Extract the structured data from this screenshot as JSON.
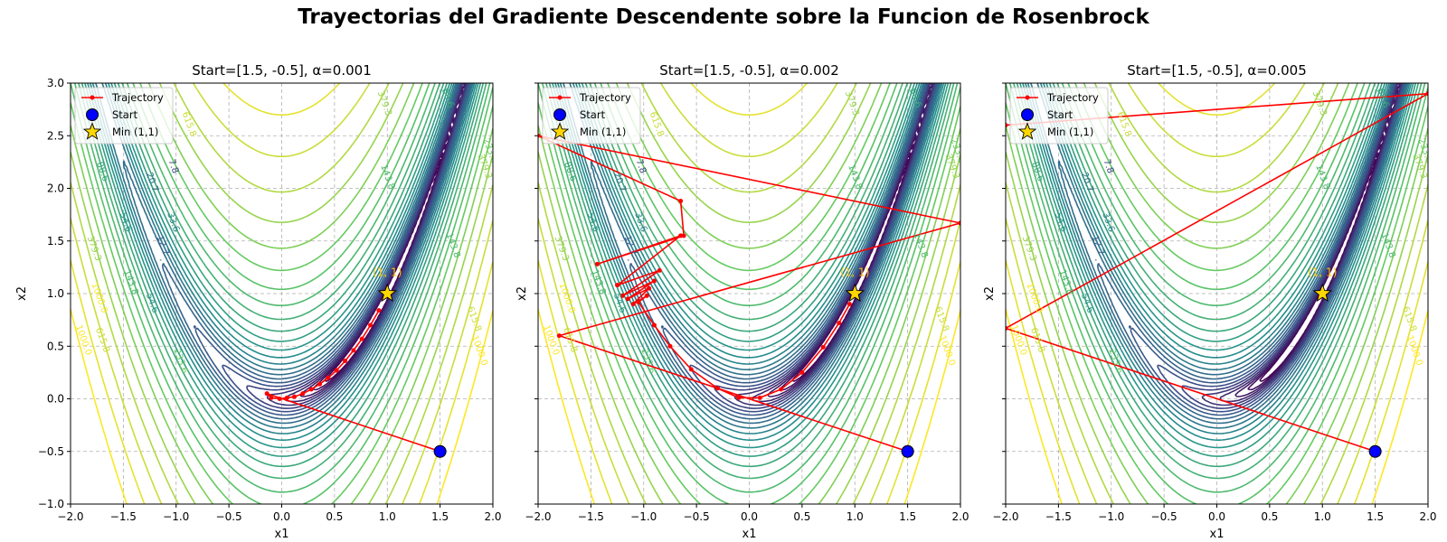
{
  "suptitle": "Trayectorias del Gradiente Descendente sobre la Funcion de Rosenbrock",
  "chart_data": [
    {
      "type": "line",
      "title": "Start=[1.5, -0.5], α=0.001",
      "xlabel": "x1",
      "ylabel": "x2",
      "xlim": [
        -2.0,
        2.0
      ],
      "ylim": [
        -1.0,
        3.0
      ],
      "xticks": [
        "−2.0",
        "−1.5",
        "−1.0",
        "−0.5",
        "0.0",
        "0.5",
        "1.0",
        "1.5",
        "2.0"
      ],
      "yticks": [
        "−1.0",
        "−0.5",
        "0.0",
        "0.5",
        "1.0",
        "1.5",
        "2.0",
        "2.5",
        "3.0"
      ],
      "grid": true,
      "legend_position": "upper-left",
      "series": [
        {
          "name": "Trajectory",
          "color": "#ff0000",
          "x": [
            1.5,
            -0.14,
            -0.1,
            -0.02,
            0.05,
            0.12,
            0.2,
            0.28,
            0.36,
            0.44,
            0.52,
            0.6,
            0.68,
            0.76,
            0.84,
            0.92
          ],
          "y": [
            -0.5,
            0.05,
            0.01,
            0.0,
            0.01,
            0.02,
            0.05,
            0.09,
            0.14,
            0.2,
            0.27,
            0.36,
            0.46,
            0.57,
            0.7,
            0.84
          ]
        },
        {
          "name": "Start",
          "color": "#0000ff",
          "x": [
            1.5
          ],
          "y": [
            -0.5
          ]
        },
        {
          "name": "Min (1,1)",
          "color": "#ffd700",
          "x": [
            1.0
          ],
          "y": [
            1.0
          ]
        }
      ],
      "contour_levels": [
        1000.0,
        615.8,
        379.3,
        233.6,
        143.8,
        88.6,
        54.6,
        33.6,
        20.7,
        12.7,
        7.8
      ],
      "annotations": [
        {
          "text": "(1, 1)",
          "x": 1.0,
          "y": 1.2,
          "color": "#ffc200"
        }
      ]
    },
    {
      "type": "line",
      "title": "Start=[1.5, -0.5], α=0.002",
      "xlabel": "x1",
      "ylabel": "x2",
      "xlim": [
        -2.0,
        2.0
      ],
      "ylim": [
        -1.0,
        3.0
      ],
      "xticks": [
        "−2.0",
        "−1.5",
        "−1.0",
        "−0.5",
        "0.0",
        "0.5",
        "1.0",
        "1.5",
        "2.0"
      ],
      "yticks": [
        "−1.0",
        "−0.5",
        "0.0",
        "0.5",
        "1.0",
        "1.5",
        "2.0",
        "2.5",
        "3.0"
      ],
      "grid": true,
      "legend_position": "upper-left",
      "series": [
        {
          "name": "Trajectory",
          "color": "#ff0000",
          "x": [
            1.5,
            -1.8,
            2.0,
            -2.0,
            -0.65,
            -0.62,
            -1.44,
            -0.65,
            -1.25,
            -0.85,
            -1.2,
            -0.9,
            -1.15,
            -0.95,
            -1.1,
            -0.97,
            -1.05,
            -0.9,
            -0.75,
            -0.55,
            -0.3,
            -0.1,
            0.1,
            0.3,
            0.5,
            0.7,
            0.85,
            0.95
          ],
          "y": [
            -0.5,
            0.6,
            1.67,
            2.5,
            1.88,
            1.55,
            1.28,
            1.55,
            1.08,
            1.22,
            0.98,
            1.12,
            0.95,
            1.05,
            0.9,
            0.98,
            0.92,
            0.7,
            0.5,
            0.28,
            0.1,
            0.01,
            0.01,
            0.09,
            0.25,
            0.49,
            0.72,
            0.9
          ]
        },
        {
          "name": "Start",
          "color": "#0000ff",
          "x": [
            1.5
          ],
          "y": [
            -0.5
          ]
        },
        {
          "name": "Min (1,1)",
          "color": "#ffd700",
          "x": [
            1.0
          ],
          "y": [
            1.0
          ]
        }
      ],
      "contour_levels": [
        1000.0,
        615.8,
        379.3,
        233.6,
        143.8,
        88.6,
        54.6,
        33.6,
        20.7,
        12.7,
        7.8
      ],
      "annotations": [
        {
          "text": "(1, 1)",
          "x": 1.0,
          "y": 1.2,
          "color": "#ffc200"
        }
      ]
    },
    {
      "type": "line",
      "title": "Start=[1.5, -0.5], α=0.005",
      "xlabel": "x1",
      "ylabel": "x2",
      "xlim": [
        -2.0,
        2.0
      ],
      "ylim": [
        -1.0,
        3.0
      ],
      "xticks": [
        "−2.0",
        "−1.5",
        "−1.0",
        "−0.5",
        "0.0",
        "0.5",
        "1.0",
        "1.5",
        "2.0"
      ],
      "yticks": [
        "−1.0",
        "−0.5",
        "0.0",
        "0.5",
        "1.0",
        "1.5",
        "2.0",
        "2.5",
        "3.0"
      ],
      "grid": true,
      "legend_position": "upper-left",
      "series": [
        {
          "name": "Trajectory",
          "color": "#ff0000",
          "x": [
            1.5,
            -2.0,
            2.0,
            -2.0
          ],
          "y": [
            -0.5,
            0.67,
            2.9,
            2.6
          ]
        },
        {
          "name": "Start",
          "color": "#0000ff",
          "x": [
            1.5
          ],
          "y": [
            -0.5
          ]
        },
        {
          "name": "Min (1,1)",
          "color": "#ffd700",
          "x": [
            1.0
          ],
          "y": [
            1.0
          ]
        }
      ],
      "contour_levels": [
        1000.0,
        615.8,
        379.3,
        233.6,
        143.8,
        88.6,
        54.6,
        33.6,
        20.7,
        12.7,
        7.8
      ],
      "annotations": [
        {
          "text": "(1, 1)",
          "x": 1.0,
          "y": 1.2,
          "color": "#ffc200"
        }
      ]
    }
  ]
}
